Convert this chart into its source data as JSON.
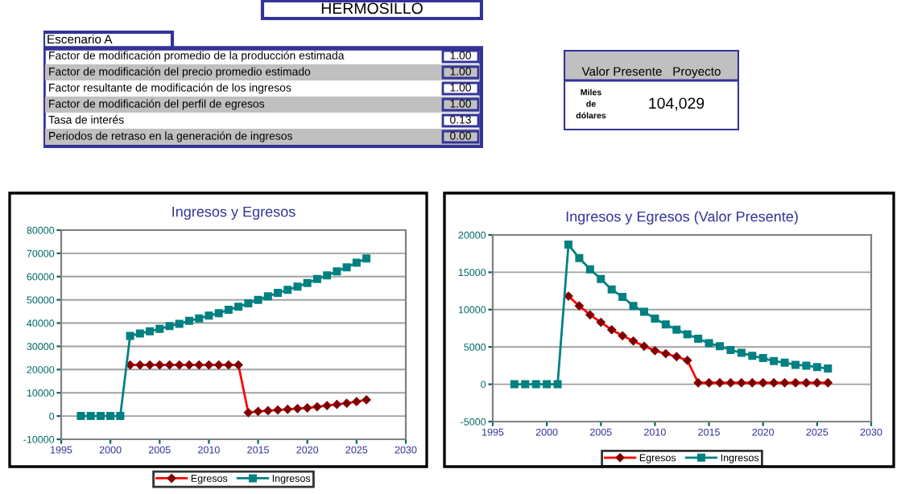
{
  "chart_data": [
    {
      "type": "other",
      "title": "HERMOSILLO",
      "subtitle": "Escenario A",
      "categories": [
        "Factor de modificación promedio de la producción estimada",
        "Factor de modificación del precio promedio estimado",
        "Factor resultante de modificación de los ingresos",
        "Factor de modificación del perfil de egresos",
        "Tasa de interés",
        "Periodos de retraso en la generación de ingresos"
      ],
      "value_labels": [
        "1.00",
        "1.00",
        "1.00",
        "1.00",
        "0.13",
        "0.00"
      ]
    },
    {
      "type": "other",
      "title": "Valor Presente   Proyecto",
      "categories": [
        "Miles de dólares"
      ],
      "value_labels": [
        "104,029"
      ]
    },
    {
      "type": "line",
      "title": "Ingresos y Egresos",
      "x": [
        1997,
        1998,
        1999,
        2000,
        2001,
        2002,
        2003,
        2004,
        2005,
        2006,
        2007,
        2008,
        2009,
        2010,
        2011,
        2012,
        2013,
        2014,
        2015,
        2016,
        2017,
        2018,
        2019,
        2020,
        2021,
        2022,
        2023,
        2024,
        2025,
        2026
      ],
      "series": [
        {
          "name": "Egresos",
          "color": "#ff0000",
          "marker": "diamond",
          "values": [
            null,
            null,
            null,
            null,
            null,
            22000,
            22000,
            22000,
            22000,
            22000,
            22000,
            22000,
            22000,
            22000,
            22000,
            22000,
            22000,
            1500,
            2000,
            2300,
            2600,
            2900,
            3200,
            3500,
            4000,
            4500,
            5000,
            5500,
            6200,
            7000
          ]
        },
        {
          "name": "Ingresos",
          "color": "#008080",
          "marker": "square",
          "values": [
            0,
            0,
            0,
            0,
            0,
            34500,
            35500,
            36500,
            37500,
            38700,
            39700,
            41000,
            42000,
            43200,
            44300,
            45700,
            47000,
            48500,
            50000,
            51500,
            53000,
            54300,
            55700,
            57200,
            59000,
            60500,
            62300,
            64000,
            66000,
            67800
          ]
        }
      ],
      "xlim": [
        1995,
        2030
      ],
      "xticks": [
        1995,
        2000,
        2005,
        2010,
        2015,
        2020,
        2025,
        2030
      ],
      "ylim": [
        -10000,
        80000
      ],
      "yticks": [
        -10000,
        0,
        10000,
        20000,
        30000,
        40000,
        50000,
        60000,
        70000,
        80000
      ],
      "grid": "y",
      "legend": "bottom"
    },
    {
      "type": "line",
      "title": "Ingresos y Egresos (Valor Presente)",
      "x": [
        1997,
        1998,
        1999,
        2000,
        2001,
        2002,
        2003,
        2004,
        2005,
        2006,
        2007,
        2008,
        2009,
        2010,
        2011,
        2012,
        2013,
        2014,
        2015,
        2016,
        2017,
        2018,
        2019,
        2020,
        2021,
        2022,
        2023,
        2024,
        2025,
        2026
      ],
      "series": [
        {
          "name": "Egresos",
          "color": "#ff0000",
          "marker": "diamond",
          "values": [
            null,
            null,
            null,
            null,
            null,
            11800,
            10500,
            9300,
            8300,
            7300,
            6500,
            5800,
            5100,
            4500,
            4100,
            3700,
            3200,
            200,
            200,
            200,
            200,
            200,
            200,
            200,
            200,
            200,
            200,
            200,
            200,
            200
          ]
        },
        {
          "name": "Ingresos",
          "color": "#008080",
          "marker": "square",
          "values": [
            0,
            0,
            0,
            0,
            0,
            18700,
            16900,
            15400,
            14100,
            12700,
            11700,
            10500,
            9700,
            8800,
            8000,
            7300,
            6700,
            6100,
            5500,
            5100,
            4600,
            4200,
            3800,
            3500,
            3100,
            2900,
            2600,
            2500,
            2300,
            2100
          ]
        }
      ],
      "xlim": [
        1995,
        2030
      ],
      "xticks": [
        1995,
        2000,
        2005,
        2010,
        2015,
        2020,
        2025,
        2030
      ],
      "ylim": [
        -5000,
        20000
      ],
      "yticks": [
        -5000,
        0,
        5000,
        10000,
        15000,
        20000
      ],
      "grid": "y",
      "legend": "bottom"
    }
  ]
}
